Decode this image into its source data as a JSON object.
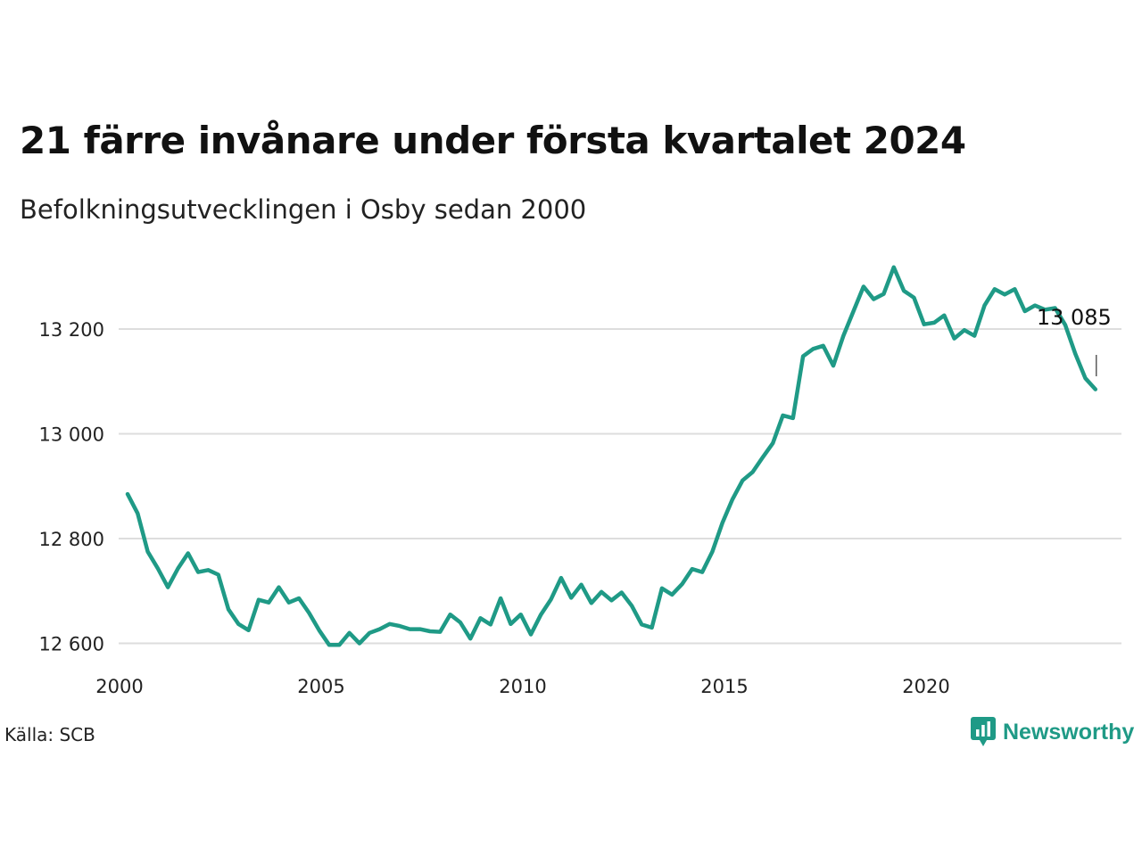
{
  "title": "21 färre invånare under första kvartalet 2024",
  "subtitle": "Befolkningsutvecklingen i Osby sedan 2000",
  "source": "Källa: SCB",
  "brand": {
    "name": "Newsworthy",
    "icon": "newsworthy-logo-icon",
    "color": "#1f9a86"
  },
  "colors": {
    "line": "#1f9a86",
    "grid": "#dddddd",
    "axis_text": "#222222"
  },
  "chart_data": {
    "type": "line",
    "x_tick_labels": [
      "2000",
      "2005",
      "2010",
      "2015",
      "2020"
    ],
    "y_ticks": [
      12600,
      12800,
      13000,
      13200
    ],
    "y_tick_labels": [
      "12 600",
      "12 800",
      "13 000",
      "13 200"
    ],
    "ylim": [
      12550,
      13350
    ],
    "xlim": [
      2000.0,
      2024.75
    ],
    "grid": "horizontal",
    "annotation": {
      "text": "13 085",
      "x": 2024.0,
      "y": 13085
    },
    "series": [
      {
        "x": [
          2000.0,
          2000.25,
          2000.5,
          2000.75,
          2001.0,
          2001.25,
          2001.5,
          2001.75,
          2002.0,
          2002.25,
          2002.5,
          2002.75,
          2003.0,
          2003.25,
          2003.5,
          2003.75,
          2004.0,
          2004.25,
          2004.5,
          2004.75,
          2005.0,
          2005.25,
          2005.5,
          2005.75,
          2006.0,
          2006.25,
          2006.5,
          2006.75,
          2007.0,
          2007.25,
          2007.5,
          2007.75,
          2008.0,
          2008.25,
          2008.5,
          2008.75,
          2009.0,
          2009.25,
          2009.5,
          2009.75,
          2010.0,
          2010.25,
          2010.5,
          2010.75,
          2011.0,
          2011.25,
          2011.5,
          2011.75,
          2012.0,
          2012.25,
          2012.5,
          2012.75,
          2013.0,
          2013.25,
          2013.5,
          2013.75,
          2014.0,
          2014.25,
          2014.5,
          2014.75,
          2015.0,
          2015.25,
          2015.5,
          2015.75,
          2016.0,
          2016.25,
          2016.5,
          2016.75,
          2017.0,
          2017.25,
          2017.5,
          2017.75,
          2018.0,
          2018.25,
          2018.5,
          2018.75,
          2019.0,
          2019.25,
          2019.5,
          2019.75,
          2020.0,
          2020.25,
          2020.5,
          2020.75,
          2021.0,
          2021.25,
          2021.5,
          2021.75,
          2022.0,
          2022.25,
          2022.5,
          2022.75,
          2023.0,
          2023.25,
          2023.5,
          2023.75,
          2024.0
        ],
        "y": [
          12885,
          12848,
          12775,
          12743,
          12707,
          12743,
          12772,
          12736,
          12740,
          12731,
          12665,
          12637,
          12625,
          12683,
          12678,
          12707,
          12678,
          12686,
          12658,
          12625,
          12597,
          12597,
          12620,
          12600,
          12620,
          12627,
          12637,
          12633,
          12627,
          12627,
          12623,
          12622,
          12655,
          12640,
          12609,
          12648,
          12636,
          12686,
          12637,
          12655,
          12617,
          12655,
          12684,
          12725,
          12687,
          12712,
          12677,
          12698,
          12682,
          12697,
          12672,
          12636,
          12630,
          12705,
          12693,
          12713,
          12742,
          12736,
          12775,
          12830,
          12875,
          12911,
          12927,
          12955,
          12982,
          13035,
          13030,
          13148,
          13162,
          13168,
          13130,
          13187,
          13234,
          13281,
          13257,
          13267,
          13318,
          13273,
          13260,
          13209,
          13212,
          13226,
          13182,
          13198,
          13187,
          13245,
          13276,
          13266,
          13276,
          13234,
          13245,
          13237,
          13240,
          13208,
          13153,
          13106,
          13085
        ]
      }
    ]
  }
}
